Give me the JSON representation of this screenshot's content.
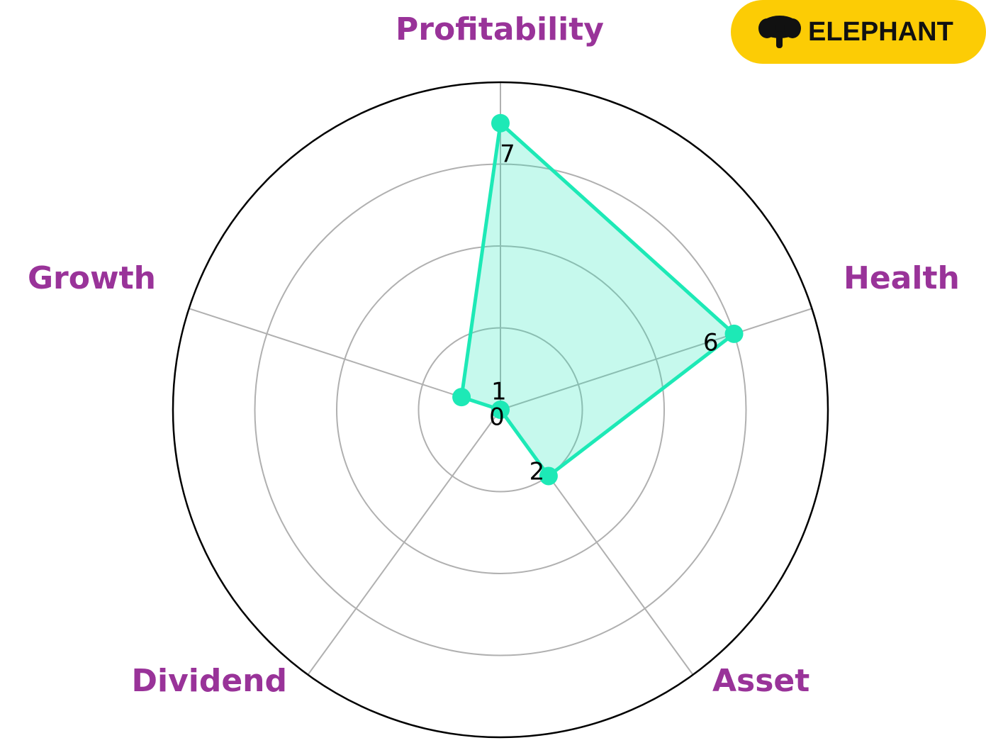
{
  "chart_data": {
    "type": "radar",
    "categories": [
      "Profitability",
      "Health",
      "Asset",
      "Dividend",
      "Growth"
    ],
    "values": [
      7,
      6,
      2,
      0,
      1
    ],
    "color": "#1de9b6",
    "ylim": [
      0,
      8
    ],
    "yticks": [
      2,
      4,
      6
    ],
    "grid": true
  },
  "logo": "ELEPHANT"
}
